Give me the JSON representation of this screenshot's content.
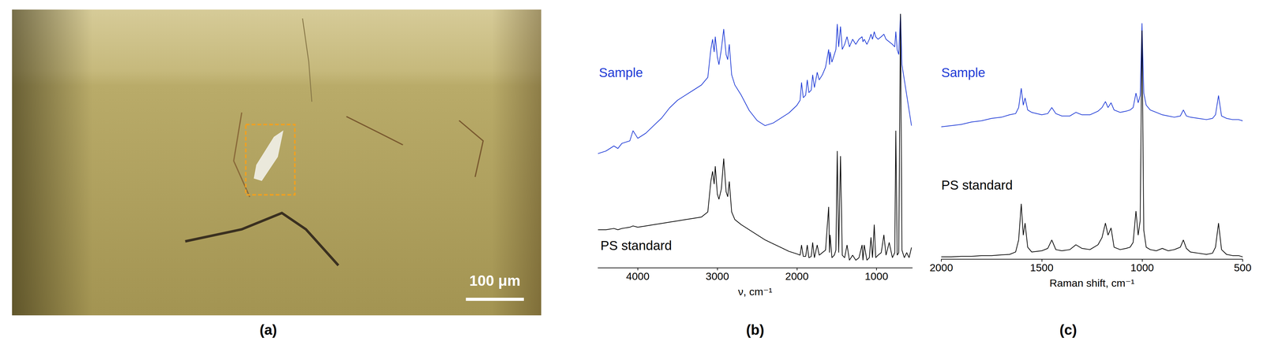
{
  "image_panel": {
    "panel": "(a)",
    "scale_bar": "100 μm"
  },
  "chart_data": [
    {
      "panel": "(b)",
      "type": "line",
      "x_label": "ν, cm⁻¹",
      "xlim": [
        4500,
        550
      ],
      "xticks": [
        4000,
        3000,
        2000,
        1000
      ],
      "ylim": [
        0,
        10
      ],
      "yticks": [],
      "tick_labels": "x",
      "grid": false,
      "x": [
        4500,
        4400,
        4300,
        4250,
        4200,
        4100,
        4060,
        4000,
        3900,
        3800,
        3700,
        3600,
        3500,
        3400,
        3300,
        3200,
        3120,
        3082,
        3060,
        3040,
        3026,
        3000,
        2980,
        2950,
        2920,
        2890,
        2870,
        2850,
        2820,
        2780,
        2700,
        2600,
        2500,
        2400,
        2300,
        2200,
        2100,
        2000,
        1960,
        1942,
        1920,
        1890,
        1870,
        1850,
        1820,
        1802,
        1780,
        1745,
        1720,
        1680,
        1640,
        1601,
        1590,
        1583,
        1560,
        1530,
        1510,
        1493,
        1475,
        1452,
        1430,
        1400,
        1370,
        1340,
        1300,
        1260,
        1220,
        1181,
        1170,
        1154,
        1120,
        1090,
        1069,
        1050,
        1028,
        1010,
        980,
        940,
        907,
        880,
        840,
        800,
        770,
        757,
        740,
        720,
        698,
        680,
        650,
        620,
        590,
        560
      ],
      "series": [
        {
          "name": "Sample",
          "color": "#1f3bd6",
          "values": [
            4.5,
            4.6,
            4.8,
            4.7,
            4.9,
            5.0,
            5.4,
            5.1,
            5.3,
            5.6,
            5.9,
            6.3,
            6.6,
            6.8,
            7.0,
            7.2,
            7.5,
            8.6,
            9.0,
            8.5,
            9.1,
            8.3,
            8.0,
            8.6,
            9.4,
            8.4,
            8.2,
            8.8,
            7.6,
            7.2,
            6.8,
            6.2,
            5.8,
            5.6,
            5.7,
            5.9,
            6.1,
            6.4,
            6.6,
            7.3,
            6.7,
            6.8,
            7.4,
            6.9,
            7.0,
            7.6,
            7.1,
            7.7,
            7.4,
            7.6,
            7.9,
            8.6,
            8.0,
            8.5,
            8.1,
            8.4,
            8.6,
            9.6,
            8.7,
            9.5,
            8.6,
            8.8,
            9.1,
            8.7,
            9.0,
            8.8,
            9.0,
            9.1,
            8.9,
            9.0,
            8.8,
            9.0,
            9.2,
            9.0,
            9.3,
            9.1,
            9.0,
            9.1,
            9.2,
            9.0,
            8.9,
            8.8,
            8.7,
            9.3,
            8.6,
            8.4,
            10,
            8.0,
            7.4,
            6.8,
            6.2,
            5.6
          ]
        },
        {
          "name": "PS standard",
          "color": "#000000",
          "values": [
            1.5,
            1.5,
            1.55,
            1.5,
            1.55,
            1.6,
            1.65,
            1.6,
            1.65,
            1.7,
            1.75,
            1.8,
            1.85,
            1.9,
            1.95,
            2.0,
            2.2,
            3.4,
            3.8,
            3.3,
            4.0,
            2.9,
            2.7,
            3.1,
            4.3,
            3.0,
            2.8,
            3.4,
            2.2,
            1.9,
            1.7,
            1.5,
            1.3,
            1.1,
            0.95,
            0.8,
            0.65,
            0.55,
            0.5,
            0.9,
            0.45,
            0.45,
            0.9,
            0.4,
            0.45,
            1.0,
            0.4,
            0.9,
            0.5,
            0.6,
            0.7,
            2.4,
            0.6,
            1.3,
            0.4,
            0.5,
            0.7,
            4.6,
            0.6,
            4.4,
            0.5,
            0.4,
            0.9,
            0.3,
            0.5,
            0.3,
            0.4,
            0.9,
            0.3,
            0.9,
            0.3,
            0.4,
            1.2,
            0.4,
            1.7,
            0.4,
            0.5,
            0.6,
            1.3,
            0.5,
            1.0,
            0.4,
            0.6,
            5.4,
            0.5,
            0.6,
            10,
            0.7,
            0.4,
            0.6,
            0.4,
            0.8
          ]
        }
      ]
    },
    {
      "panel": "(c)",
      "type": "line",
      "x_label": "Raman shift, cm⁻¹",
      "xlim": [
        2000,
        500
      ],
      "xticks": [
        2000,
        1500,
        1000,
        500
      ],
      "ylim": [
        0,
        10
      ],
      "yticks": [],
      "tick_labels": "x",
      "grid": false,
      "x": [
        2000,
        1950,
        1900,
        1850,
        1800,
        1750,
        1700,
        1660,
        1630,
        1615,
        1602,
        1592,
        1583,
        1570,
        1550,
        1500,
        1470,
        1450,
        1430,
        1400,
        1360,
        1330,
        1300,
        1260,
        1220,
        1200,
        1183,
        1170,
        1155,
        1140,
        1110,
        1080,
        1060,
        1045,
        1031,
        1020,
        1010,
        1001,
        992,
        980,
        960,
        930,
        900,
        870,
        840,
        810,
        795,
        780,
        760,
        720,
        680,
        650,
        635,
        620,
        605,
        580,
        550,
        520,
        500
      ],
      "series": [
        {
          "name": "Sample",
          "color": "#1f3bd6",
          "values": [
            5.5,
            5.55,
            5.6,
            5.7,
            5.75,
            5.85,
            5.9,
            6.0,
            6.05,
            6.3,
            7.1,
            6.4,
            6.7,
            6.2,
            6.1,
            6.0,
            6.05,
            6.3,
            6.05,
            5.95,
            5.95,
            6.1,
            6.0,
            6.0,
            6.15,
            6.3,
            6.55,
            6.3,
            6.5,
            6.2,
            6.1,
            6.15,
            6.2,
            6.3,
            6.9,
            6.5,
            6.8,
            9.8,
            6.9,
            6.4,
            6.2,
            6.1,
            6.0,
            5.95,
            5.9,
            5.95,
            6.2,
            5.95,
            5.9,
            5.85,
            5.8,
            5.85,
            6.0,
            6.8,
            5.95,
            5.85,
            5.8,
            5.8,
            5.75
          ]
        },
        {
          "name": "PS standard",
          "color": "#000000",
          "values": [
            0.1,
            0.1,
            0.12,
            0.12,
            0.15,
            0.15,
            0.18,
            0.2,
            0.3,
            0.8,
            2.3,
            1.0,
            1.5,
            0.5,
            0.3,
            0.35,
            0.45,
            0.8,
            0.4,
            0.35,
            0.4,
            0.6,
            0.45,
            0.4,
            0.6,
            0.9,
            1.5,
            1.0,
            1.3,
            0.5,
            0.4,
            0.45,
            0.5,
            0.7,
            2.0,
            1.0,
            1.6,
            9.5,
            1.2,
            0.5,
            0.4,
            0.35,
            0.45,
            0.35,
            0.4,
            0.5,
            0.8,
            0.45,
            0.3,
            0.25,
            0.2,
            0.25,
            0.5,
            1.5,
            0.4,
            0.2,
            0.15,
            0.15,
            0.1
          ]
        }
      ]
    }
  ]
}
